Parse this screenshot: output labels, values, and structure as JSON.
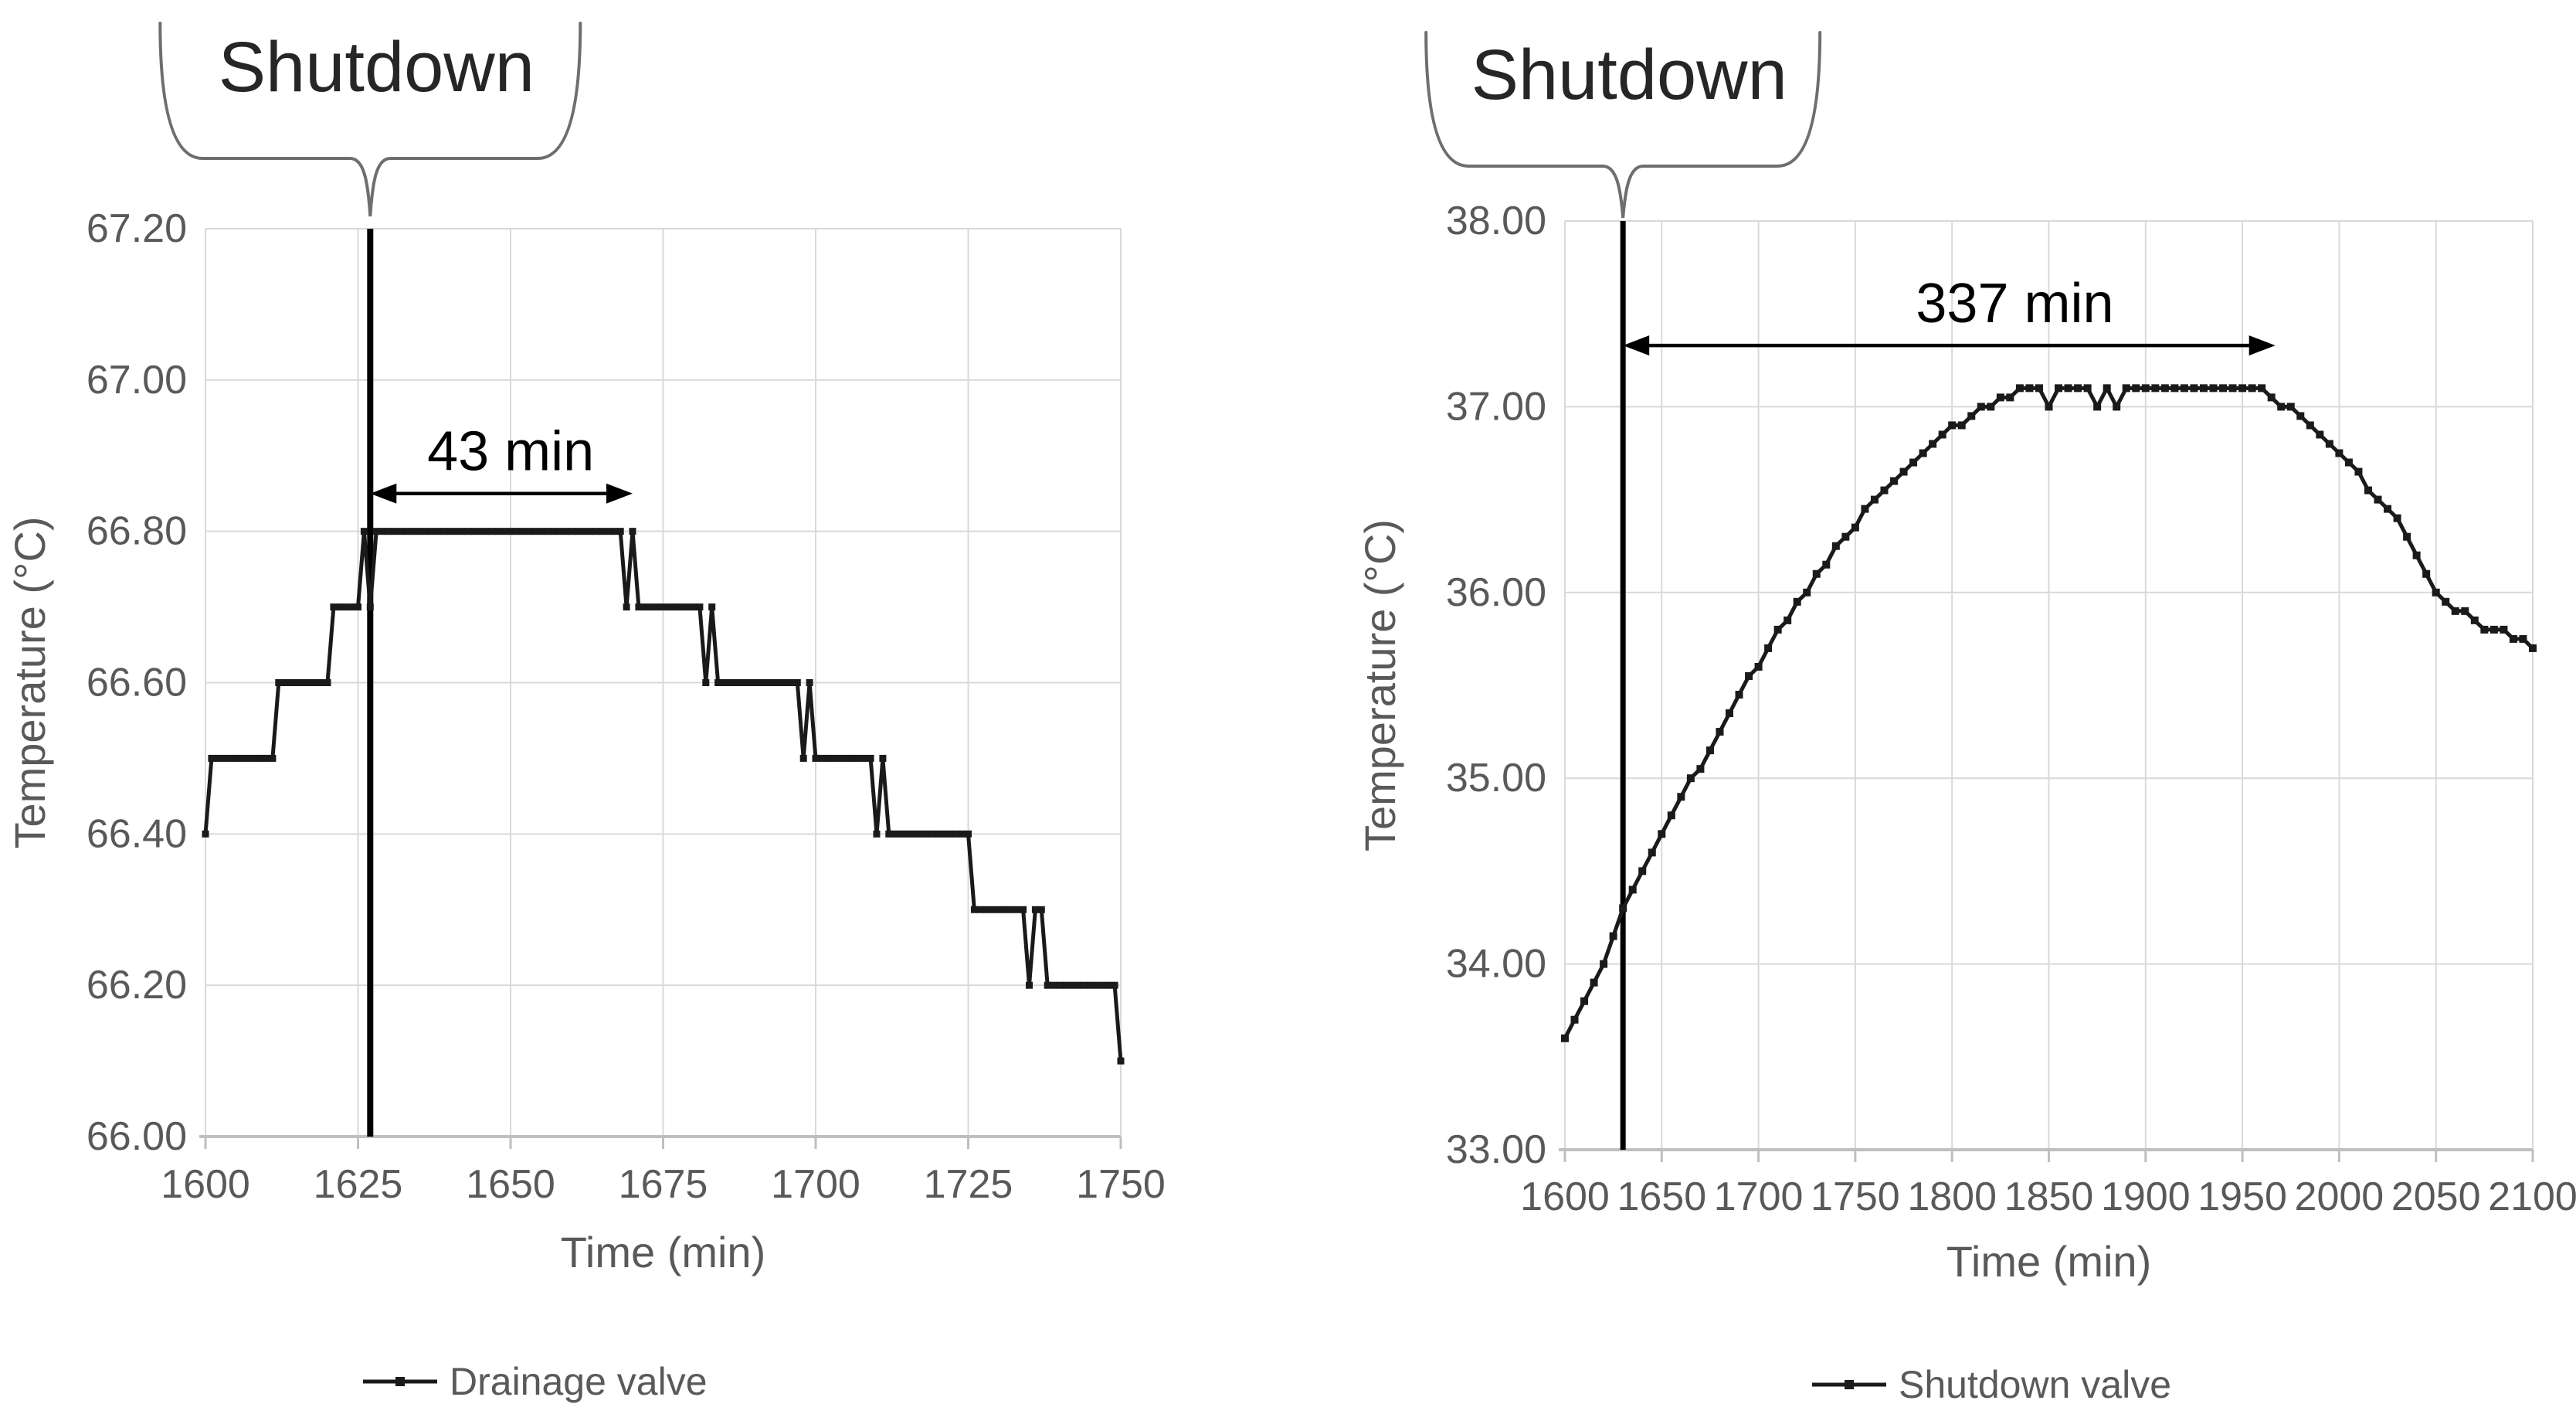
{
  "figure": {
    "description": "Two temperature vs time charts with shutdown annotations"
  },
  "colors": {
    "background": "#ffffff",
    "series": "#1a1a1a",
    "grid": "#d9d9d9",
    "axis_line": "#bfbfbf",
    "tick_text": "#595959",
    "title_text": "#595959",
    "legend_text": "#595959",
    "annotation": "#000000",
    "brace": "#6e6e6e",
    "shutdown_line": "#000000"
  },
  "chart_data": [
    {
      "type": "line",
      "name": "drainage-valve-chart",
      "xlabel": "Time (min)",
      "ylabel": "Temperature (°C)",
      "xlim": [
        1600,
        1750
      ],
      "ylim": [
        66.0,
        67.2
      ],
      "x_ticks": [
        1600,
        1625,
        1650,
        1675,
        1700,
        1725,
        1750
      ],
      "y_ticks": [
        66.0,
        66.2,
        66.4,
        66.6,
        66.8,
        67.0,
        67.2
      ],
      "y_tick_decimals": 2,
      "grid": true,
      "legend_label": "Drainage valve",
      "legend_position": "bottom",
      "brace_label": "Shutdown",
      "shutdown_x": 1627,
      "annotation": {
        "label": "43 min",
        "from_x": 1627,
        "to_x": 1670,
        "y": 66.85
      },
      "series_segments": [
        [
          1600,
          1600,
          66.4
        ],
        [
          1601,
          1611,
          66.5
        ],
        [
          1612,
          1620,
          66.6
        ],
        [
          1621,
          1625,
          66.7
        ],
        [
          1626,
          1626,
          66.8
        ],
        [
          1627,
          1627,
          66.7
        ],
        [
          1628,
          1668,
          66.8
        ],
        [
          1669,
          1669,
          66.7
        ],
        [
          1670,
          1670,
          66.8
        ],
        [
          1671,
          1681,
          66.7
        ],
        [
          1682,
          1682,
          66.6
        ],
        [
          1683,
          1683,
          66.7
        ],
        [
          1684,
          1697,
          66.6
        ],
        [
          1698,
          1698,
          66.5
        ],
        [
          1699,
          1699,
          66.6
        ],
        [
          1700,
          1709,
          66.5
        ],
        [
          1710,
          1710,
          66.4
        ],
        [
          1711,
          1711,
          66.5
        ],
        [
          1712,
          1725,
          66.4
        ],
        [
          1726,
          1734,
          66.3
        ],
        [
          1735,
          1735,
          66.2
        ],
        [
          1736,
          1737,
          66.3
        ],
        [
          1738,
          1749,
          66.2
        ],
        [
          1750,
          1750,
          66.1
        ]
      ]
    },
    {
      "type": "line",
      "name": "shutdown-valve-chart",
      "xlabel": "Time (min)",
      "ylabel": "Temperature (°C)",
      "xlim": [
        1600,
        2100
      ],
      "ylim": [
        33.0,
        38.0
      ],
      "x_ticks": [
        1600,
        1650,
        1700,
        1750,
        1800,
        1850,
        1900,
        1950,
        2000,
        2050,
        2100
      ],
      "y_ticks": [
        33.0,
        34.0,
        35.0,
        36.0,
        37.0,
        38.0
      ],
      "y_tick_decimals": 2,
      "grid": true,
      "legend_label": "Shutdown valve",
      "legend_position": "bottom",
      "brace_label": "Shutdown",
      "shutdown_x": 1630,
      "annotation": {
        "label": "337 min",
        "from_x": 1630,
        "to_x": 1967,
        "y": 37.33
      },
      "series_points": [
        [
          1600,
          33.6
        ],
        [
          1605,
          33.7
        ],
        [
          1610,
          33.8
        ],
        [
          1615,
          33.9
        ],
        [
          1620,
          34.0
        ],
        [
          1625,
          34.15
        ],
        [
          1630,
          34.3
        ],
        [
          1635,
          34.4
        ],
        [
          1640,
          34.5
        ],
        [
          1645,
          34.6
        ],
        [
          1650,
          34.7
        ],
        [
          1655,
          34.8
        ],
        [
          1660,
          34.9
        ],
        [
          1665,
          35.0
        ],
        [
          1670,
          35.05
        ],
        [
          1675,
          35.15
        ],
        [
          1680,
          35.25
        ],
        [
          1685,
          35.35
        ],
        [
          1690,
          35.45
        ],
        [
          1695,
          35.55
        ],
        [
          1700,
          35.6
        ],
        [
          1705,
          35.7
        ],
        [
          1710,
          35.8
        ],
        [
          1715,
          35.85
        ],
        [
          1720,
          35.95
        ],
        [
          1725,
          36.0
        ],
        [
          1730,
          36.1
        ],
        [
          1735,
          36.15
        ],
        [
          1740,
          36.25
        ],
        [
          1745,
          36.3
        ],
        [
          1750,
          36.35
        ],
        [
          1755,
          36.45
        ],
        [
          1760,
          36.5
        ],
        [
          1765,
          36.55
        ],
        [
          1770,
          36.6
        ],
        [
          1775,
          36.65
        ],
        [
          1780,
          36.7
        ],
        [
          1785,
          36.75
        ],
        [
          1790,
          36.8
        ],
        [
          1795,
          36.85
        ],
        [
          1800,
          36.9
        ],
        [
          1805,
          36.9
        ],
        [
          1810,
          36.95
        ],
        [
          1815,
          37.0
        ],
        [
          1820,
          37.0
        ],
        [
          1825,
          37.05
        ],
        [
          1830,
          37.05
        ],
        [
          1835,
          37.1
        ],
        [
          1840,
          37.1
        ],
        [
          1845,
          37.1
        ],
        [
          1850,
          37.0
        ],
        [
          1855,
          37.1
        ],
        [
          1860,
          37.1
        ],
        [
          1865,
          37.1
        ],
        [
          1870,
          37.1
        ],
        [
          1875,
          37.0
        ],
        [
          1880,
          37.1
        ],
        [
          1885,
          37.0
        ],
        [
          1890,
          37.1
        ],
        [
          1895,
          37.1
        ],
        [
          1900,
          37.1
        ],
        [
          1905,
          37.1
        ],
        [
          1910,
          37.1
        ],
        [
          1915,
          37.1
        ],
        [
          1920,
          37.1
        ],
        [
          1925,
          37.1
        ],
        [
          1930,
          37.1
        ],
        [
          1935,
          37.1
        ],
        [
          1940,
          37.1
        ],
        [
          1945,
          37.1
        ],
        [
          1950,
          37.1
        ],
        [
          1955,
          37.1
        ],
        [
          1960,
          37.1
        ],
        [
          1965,
          37.05
        ],
        [
          1970,
          37.0
        ],
        [
          1975,
          37.0
        ],
        [
          1980,
          36.95
        ],
        [
          1985,
          36.9
        ],
        [
          1990,
          36.85
        ],
        [
          1995,
          36.8
        ],
        [
          2000,
          36.75
        ],
        [
          2005,
          36.7
        ],
        [
          2010,
          36.65
        ],
        [
          2015,
          36.55
        ],
        [
          2020,
          36.5
        ],
        [
          2025,
          36.45
        ],
        [
          2030,
          36.4
        ],
        [
          2035,
          36.3
        ],
        [
          2040,
          36.2
        ],
        [
          2045,
          36.1
        ],
        [
          2050,
          36.0
        ],
        [
          2055,
          35.95
        ],
        [
          2060,
          35.9
        ],
        [
          2065,
          35.9
        ],
        [
          2070,
          35.85
        ],
        [
          2075,
          35.8
        ],
        [
          2080,
          35.8
        ],
        [
          2085,
          35.8
        ],
        [
          2090,
          35.75
        ],
        [
          2095,
          35.75
        ],
        [
          2100,
          35.7
        ]
      ]
    }
  ]
}
